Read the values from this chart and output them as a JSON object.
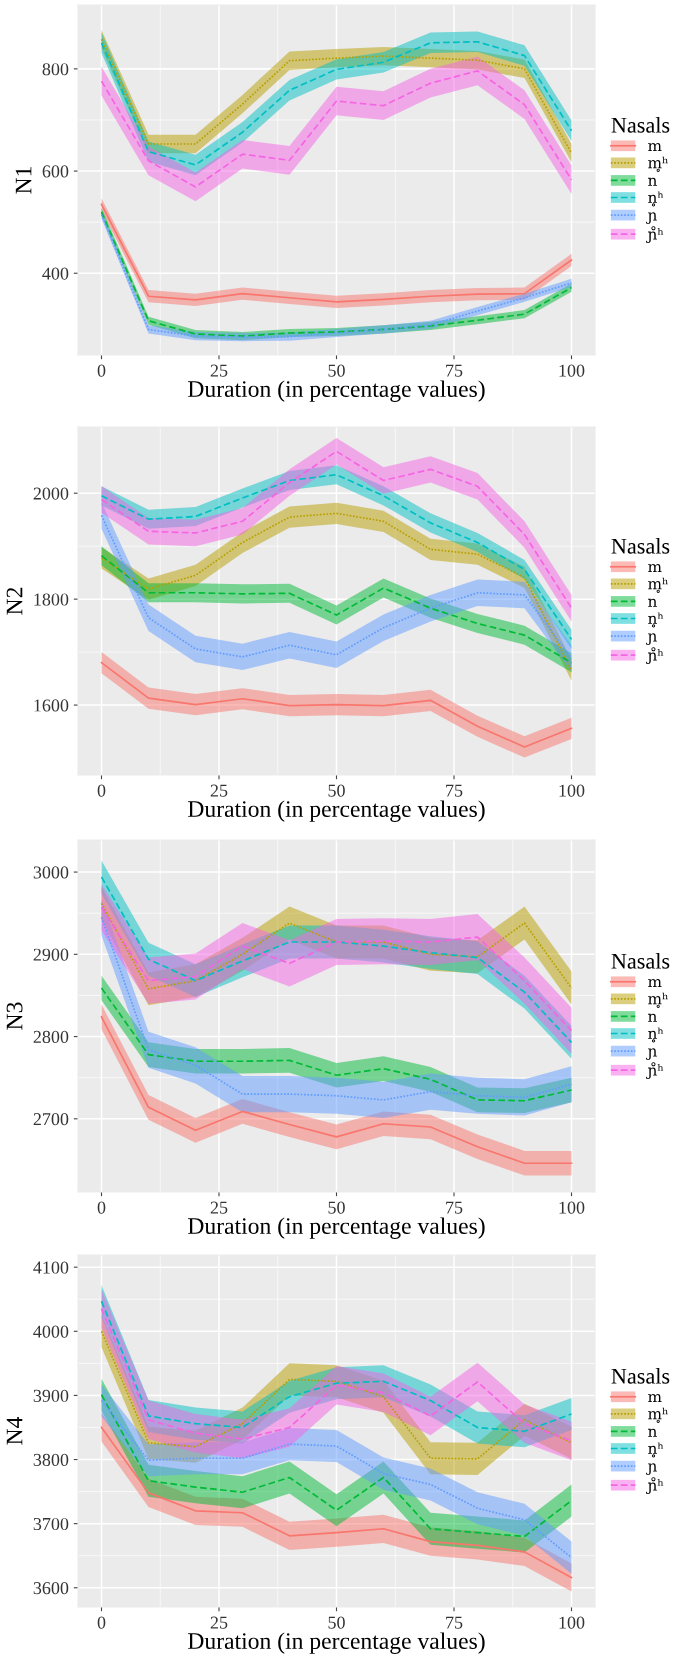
{
  "chart_data": [
    {
      "type": "line",
      "xlabel": "Duration (in percentage values)",
      "ylabel": "N1",
      "legend": "right",
      "legend_title": "Nasals",
      "grid": true,
      "x": [
        0,
        10,
        20,
        30,
        40,
        50,
        60,
        70,
        80,
        90,
        100
      ],
      "xlim": [
        -5,
        105
      ],
      "xticks": [
        0,
        25,
        50,
        75,
        100
      ],
      "ylim": [
        240,
        925
      ],
      "yticks": [
        400,
        600,
        800
      ],
      "series": [
        {
          "name": "m",
          "color": "#F8766D",
          "line_style": "solid",
          "values": [
            535,
            355,
            348,
            360,
            352,
            344,
            349,
            355,
            359,
            360,
            426
          ],
          "lower": [
            523,
            343,
            336,
            348,
            340,
            332,
            337,
            343,
            347,
            348,
            414
          ],
          "upper": [
            547,
            367,
            360,
            372,
            364,
            356,
            361,
            367,
            371,
            372,
            438
          ]
        },
        {
          "name": "m̥ʰ",
          "color": "#B79F00",
          "line_style": "dotted",
          "values": [
            858,
            653,
            653,
            731,
            816,
            821,
            825,
            821,
            817,
            800,
            635
          ],
          "lower": [
            840,
            635,
            635,
            713,
            798,
            803,
            807,
            803,
            799,
            782,
            617
          ],
          "upper": [
            876,
            671,
            671,
            749,
            834,
            839,
            843,
            839,
            835,
            818,
            653
          ]
        },
        {
          "name": "n",
          "color": "#00BA38",
          "line_style": "dashed",
          "values": [
            520,
            307,
            281,
            277,
            283,
            285,
            290,
            297,
            308,
            320,
            372
          ],
          "lower": [
            512,
            299,
            273,
            269,
            275,
            277,
            282,
            289,
            300,
            312,
            364
          ],
          "upper": [
            528,
            315,
            289,
            285,
            291,
            293,
            298,
            305,
            316,
            328,
            380
          ]
        },
        {
          "name": "n̥ʰ",
          "color": "#00BFC4",
          "line_style": "dashed",
          "values": [
            851,
            638,
            612,
            676,
            758,
            799,
            813,
            851,
            853,
            826,
            679
          ],
          "lower": [
            831,
            618,
            592,
            656,
            738,
            779,
            793,
            831,
            833,
            806,
            659
          ],
          "upper": [
            871,
            658,
            632,
            696,
            778,
            819,
            833,
            871,
            873,
            846,
            699
          ]
        },
        {
          "name": "ɲ",
          "color": "#619CFF",
          "line_style": "dotted",
          "values": [
            515,
            290,
            277,
            275,
            276,
            283,
            290,
            299,
            326,
            352,
            381
          ],
          "lower": [
            507,
            282,
            269,
            267,
            268,
            275,
            282,
            291,
            318,
            344,
            373
          ],
          "upper": [
            523,
            298,
            285,
            283,
            284,
            291,
            298,
            307,
            334,
            360,
            389
          ]
        },
        {
          "name": "ɲ̊ʰ",
          "color": "#F564E3",
          "line_style": "dashed",
          "values": [
            776,
            620,
            569,
            633,
            621,
            737,
            728,
            772,
            796,
            730,
            583
          ],
          "lower": [
            748,
            592,
            541,
            605,
            593,
            709,
            700,
            744,
            768,
            702,
            555
          ],
          "upper": [
            804,
            648,
            597,
            661,
            649,
            765,
            756,
            800,
            824,
            758,
            611
          ]
        }
      ]
    },
    {
      "type": "line",
      "xlabel": "Duration (in percentage values)",
      "ylabel": "N2",
      "legend": "right",
      "legend_title": "Nasals",
      "grid": true,
      "x": [
        0,
        10,
        20,
        30,
        40,
        50,
        60,
        70,
        80,
        90,
        100
      ],
      "xlim": [
        -5,
        105
      ],
      "xticks": [
        0,
        25,
        50,
        75,
        100
      ],
      "ylim": [
        1468,
        2125
      ],
      "yticks": [
        1600,
        1800,
        2000
      ],
      "series": [
        {
          "name": "m",
          "color": "#F8766D",
          "line_style": "solid",
          "values": [
            1680,
            1613,
            1601,
            1612,
            1599,
            1601,
            1599,
            1609,
            1560,
            1521,
            1556
          ],
          "lower": [
            1660,
            1593,
            1581,
            1592,
            1579,
            1581,
            1579,
            1589,
            1540,
            1501,
            1536
          ],
          "upper": [
            1700,
            1633,
            1621,
            1632,
            1619,
            1621,
            1619,
            1629,
            1580,
            1541,
            1576
          ]
        },
        {
          "name": "m̥ʰ",
          "color": "#B79F00",
          "line_style": "dotted",
          "values": [
            1878,
            1819,
            1845,
            1907,
            1955,
            1962,
            1947,
            1894,
            1885,
            1841,
            1666
          ],
          "lower": [
            1858,
            1799,
            1825,
            1887,
            1935,
            1942,
            1927,
            1874,
            1865,
            1821,
            1646
          ],
          "upper": [
            1898,
            1839,
            1865,
            1927,
            1975,
            1982,
            1967,
            1914,
            1905,
            1861,
            1686
          ]
        },
        {
          "name": "n",
          "color": "#00BA38",
          "line_style": "dashed",
          "values": [
            1882,
            1812,
            1812,
            1810,
            1811,
            1770,
            1821,
            1783,
            1754,
            1732,
            1680
          ],
          "lower": [
            1864,
            1794,
            1794,
            1792,
            1793,
            1752,
            1803,
            1765,
            1736,
            1714,
            1662
          ],
          "upper": [
            1900,
            1830,
            1830,
            1828,
            1829,
            1788,
            1839,
            1801,
            1772,
            1750,
            1698
          ]
        },
        {
          "name": "n̥ʰ",
          "color": "#00BFC4",
          "line_style": "dashed",
          "values": [
            1995,
            1951,
            1956,
            1991,
            2024,
            2035,
            1995,
            1944,
            1907,
            1856,
            1724
          ],
          "lower": [
            1977,
            1933,
            1938,
            1973,
            2006,
            2017,
            1977,
            1926,
            1889,
            1838,
            1706
          ],
          "upper": [
            2013,
            1969,
            1974,
            2009,
            2042,
            2053,
            2013,
            1962,
            1925,
            1874,
            1742
          ]
        },
        {
          "name": "ɲ",
          "color": "#619CFF",
          "line_style": "dotted",
          "values": [
            1958,
            1765,
            1706,
            1691,
            1713,
            1695,
            1746,
            1783,
            1812,
            1808,
            1688
          ],
          "lower": [
            1933,
            1740,
            1681,
            1666,
            1688,
            1670,
            1721,
            1758,
            1787,
            1783,
            1663
          ],
          "upper": [
            1983,
            1790,
            1731,
            1716,
            1738,
            1720,
            1771,
            1808,
            1837,
            1833,
            1713
          ]
        },
        {
          "name": "ɲ̊ʰ",
          "color": "#F564E3",
          "line_style": "dashed",
          "values": [
            1988,
            1928,
            1925,
            1947,
            2020,
            2079,
            2024,
            2045,
            2013,
            1922,
            1783
          ],
          "lower": [
            1963,
            1903,
            1900,
            1922,
            1995,
            2054,
            1999,
            2020,
            1988,
            1897,
            1758
          ],
          "upper": [
            2013,
            1953,
            1950,
            1972,
            2045,
            2104,
            2049,
            2070,
            2038,
            1947,
            1808
          ]
        }
      ]
    },
    {
      "type": "line",
      "xlabel": "Duration (in percentage values)",
      "ylabel": "N3",
      "legend": "right",
      "legend_title": "Nasals",
      "grid": true,
      "x": [
        0,
        10,
        20,
        30,
        40,
        50,
        60,
        70,
        80,
        90,
        100
      ],
      "xlim": [
        -5,
        105
      ],
      "xticks": [
        0,
        25,
        50,
        75,
        100
      ],
      "ylim": [
        2611,
        3039
      ],
      "yticks": [
        2700,
        2800,
        2900,
        3000
      ],
      "series": [
        {
          "name": "m",
          "color": "#F8766D",
          "line_style": "solid",
          "values": [
            2824,
            2714,
            2686,
            2709,
            2693,
            2678,
            2694,
            2690,
            2666,
            2646,
            2646
          ],
          "lower": [
            2809,
            2699,
            2671,
            2694,
            2678,
            2663,
            2679,
            2675,
            2651,
            2631,
            2631
          ],
          "upper": [
            2839,
            2729,
            2701,
            2724,
            2708,
            2693,
            2709,
            2705,
            2681,
            2661,
            2661
          ]
        },
        {
          "name": "m̥ʰ",
          "color": "#B79F00",
          "line_style": "dotted",
          "values": [
            2962,
            2858,
            2868,
            2900,
            2938,
            2915,
            2915,
            2900,
            2897,
            2938,
            2859
          ],
          "lower": [
            2942,
            2838,
            2848,
            2880,
            2918,
            2895,
            2895,
            2880,
            2877,
            2918,
            2839
          ],
          "upper": [
            2982,
            2878,
            2888,
            2920,
            2958,
            2935,
            2935,
            2920,
            2917,
            2958,
            2879
          ]
        },
        {
          "name": "n",
          "color": "#00BA38",
          "line_style": "dashed",
          "values": [
            2859,
            2778,
            2770,
            2770,
            2771,
            2753,
            2761,
            2748,
            2723,
            2722,
            2735
          ],
          "lower": [
            2844,
            2763,
            2755,
            2755,
            2756,
            2738,
            2746,
            2733,
            2708,
            2707,
            2720
          ],
          "upper": [
            2874,
            2793,
            2785,
            2785,
            2786,
            2768,
            2776,
            2763,
            2738,
            2737,
            2750
          ]
        },
        {
          "name": "n̥ʰ",
          "color": "#00BFC4",
          "line_style": "dashed",
          "values": [
            2994,
            2894,
            2868,
            2892,
            2915,
            2915,
            2910,
            2902,
            2896,
            2854,
            2793
          ],
          "lower": [
            2974,
            2874,
            2848,
            2872,
            2895,
            2895,
            2890,
            2882,
            2876,
            2834,
            2773
          ],
          "upper": [
            3014,
            2914,
            2888,
            2912,
            2935,
            2935,
            2930,
            2922,
            2916,
            2874,
            2813
          ]
        },
        {
          "name": "ɲ",
          "color": "#619CFF",
          "line_style": "dotted",
          "values": [
            2945,
            2784,
            2765,
            2730,
            2730,
            2728,
            2723,
            2733,
            2728,
            2726,
            2742
          ],
          "lower": [
            2923,
            2762,
            2743,
            2708,
            2708,
            2706,
            2701,
            2711,
            2706,
            2704,
            2720
          ],
          "upper": [
            2967,
            2806,
            2787,
            2752,
            2752,
            2750,
            2745,
            2755,
            2750,
            2748,
            2764
          ]
        },
        {
          "name": "ɲ̊ʰ",
          "color": "#F564E3",
          "line_style": "dashed",
          "values": [
            2957,
            2868,
            2873,
            2910,
            2889,
            2915,
            2916,
            2915,
            2921,
            2868,
            2807
          ],
          "lower": [
            2929,
            2840,
            2845,
            2882,
            2861,
            2887,
            2888,
            2887,
            2893,
            2840,
            2779
          ],
          "upper": [
            2985,
            2896,
            2901,
            2938,
            2917,
            2943,
            2944,
            2943,
            2949,
            2896,
            2835
          ]
        }
      ]
    },
    {
      "type": "line",
      "xlabel": "Duration (in percentage values)",
      "ylabel": "N4",
      "legend": "right",
      "legend_title": "Nasals",
      "grid": true,
      "x": [
        0,
        10,
        20,
        30,
        40,
        50,
        60,
        70,
        80,
        90,
        100
      ],
      "xlim": [
        -5,
        105
      ],
      "xticks": [
        0,
        25,
        50,
        75,
        100
      ],
      "ylim": [
        3570,
        4119
      ],
      "yticks": [
        3600,
        3700,
        3800,
        3900,
        4000,
        4100
      ],
      "series": [
        {
          "name": "m",
          "color": "#F8766D",
          "line_style": "solid",
          "values": [
            3850,
            3748,
            3720,
            3717,
            3681,
            3686,
            3692,
            3672,
            3666,
            3656,
            3616
          ],
          "lower": [
            3828,
            3726,
            3698,
            3695,
            3659,
            3664,
            3670,
            3650,
            3644,
            3634,
            3594
          ],
          "upper": [
            3872,
            3770,
            3742,
            3739,
            3703,
            3708,
            3714,
            3694,
            3688,
            3678,
            3638
          ]
        },
        {
          "name": "m̥ʰ",
          "color": "#B79F00",
          "line_style": "dotted",
          "values": [
            4000,
            3826,
            3820,
            3856,
            3925,
            3922,
            3898,
            3802,
            3801,
            3862,
            3826
          ],
          "lower": [
            3975,
            3801,
            3795,
            3831,
            3900,
            3897,
            3873,
            3777,
            3776,
            3837,
            3801
          ],
          "upper": [
            4025,
            3851,
            3845,
            3881,
            3950,
            3947,
            3923,
            3827,
            3826,
            3887,
            3851
          ]
        },
        {
          "name": "n",
          "color": "#00BA38",
          "line_style": "dashed",
          "values": [
            3901,
            3767,
            3757,
            3749,
            3772,
            3721,
            3772,
            3692,
            3686,
            3680,
            3736
          ],
          "lower": [
            3876,
            3742,
            3732,
            3724,
            3747,
            3696,
            3747,
            3667,
            3661,
            3655,
            3711
          ],
          "upper": [
            3926,
            3792,
            3782,
            3774,
            3797,
            3746,
            3797,
            3717,
            3711,
            3705,
            3761
          ]
        },
        {
          "name": "n̥ʰ",
          "color": "#00BFC4",
          "line_style": "dashed",
          "values": [
            4047,
            3868,
            3856,
            3850,
            3898,
            3919,
            3922,
            3892,
            3850,
            3844,
            3871
          ],
          "lower": [
            4022,
            3843,
            3831,
            3825,
            3873,
            3894,
            3897,
            3867,
            3825,
            3819,
            3846
          ],
          "upper": [
            4072,
            3893,
            3881,
            3875,
            3923,
            3944,
            3947,
            3917,
            3875,
            3869,
            3896
          ]
        },
        {
          "name": "ɲ",
          "color": "#619CFF",
          "line_style": "dotted",
          "values": [
            3892,
            3799,
            3802,
            3802,
            3824,
            3821,
            3778,
            3761,
            3724,
            3706,
            3647
          ],
          "lower": [
            3867,
            3774,
            3777,
            3777,
            3799,
            3796,
            3753,
            3736,
            3699,
            3681,
            3622
          ],
          "upper": [
            3917,
            3824,
            3827,
            3827,
            3849,
            3846,
            3803,
            3786,
            3749,
            3731,
            3672
          ]
        },
        {
          "name": "ɲ̊ʰ",
          "color": "#F564E3",
          "line_style": "dashed",
          "values": [
            4035,
            3862,
            3841,
            3832,
            3850,
            3916,
            3904,
            3868,
            3921,
            3856,
            3829
          ],
          "lower": [
            4005,
            3832,
            3811,
            3802,
            3820,
            3886,
            3874,
            3838,
            3891,
            3826,
            3799
          ],
          "upper": [
            4065,
            3892,
            3871,
            3862,
            3880,
            3946,
            3934,
            3898,
            3951,
            3886,
            3859
          ]
        }
      ]
    }
  ]
}
